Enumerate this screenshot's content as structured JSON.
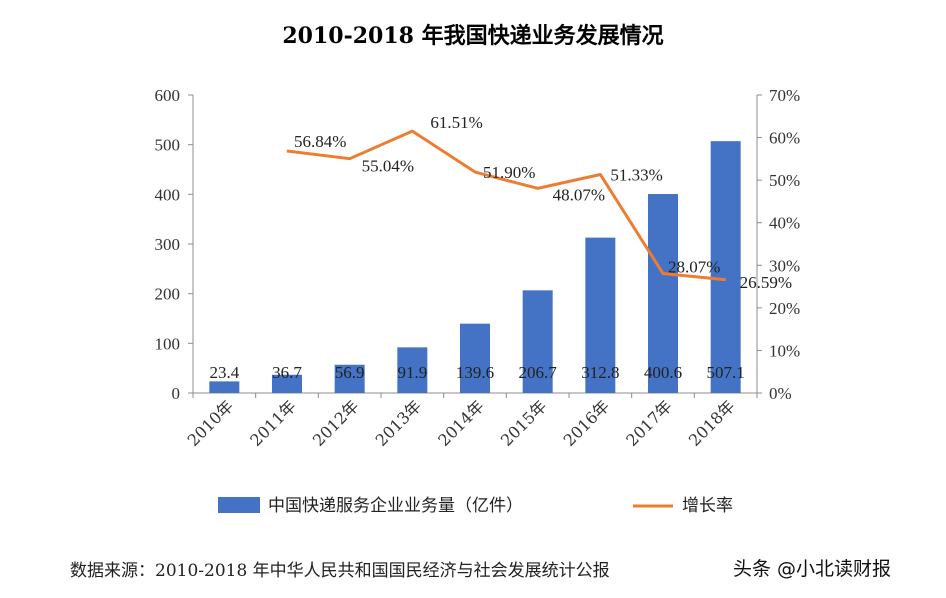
{
  "chart_data": {
    "type": "bar+line",
    "title": "2010-2018 年我国快递业务发展情况",
    "categories": [
      "2010年",
      "2011年",
      "2012年",
      "2013年",
      "2014年",
      "2015年",
      "2016年",
      "2017年",
      "2018年"
    ],
    "series": [
      {
        "name": "中国快递服务企业业务量（亿件）",
        "type": "bar",
        "axis": "left",
        "color": "#4472C4",
        "values": [
          23.4,
          36.7,
          56.9,
          91.9,
          139.6,
          206.7,
          312.8,
          400.6,
          507.1
        ],
        "labels": [
          "23.4",
          "36.7",
          "56.9",
          "91.9",
          "139.6",
          "206.7",
          "312.8",
          "400.6",
          "507.1"
        ]
      },
      {
        "name": "增长率",
        "type": "line",
        "axis": "right",
        "color": "#ED7D31",
        "values": [
          null,
          56.84,
          55.04,
          61.51,
          51.9,
          48.07,
          51.33,
          28.07,
          26.59
        ],
        "labels": [
          "",
          "56.84%",
          "55.04%",
          "61.51%",
          "51.90%",
          "48.07%",
          "51.33%",
          "28.07%",
          "26.59%"
        ]
      }
    ],
    "ylim_left": [
      0,
      600
    ],
    "yticks_left": [
      "0",
      "100",
      "200",
      "300",
      "400",
      "500",
      "600"
    ],
    "ylim_right": [
      0,
      70
    ],
    "yticks_right": [
      "0%",
      "10%",
      "20%",
      "30%",
      "40%",
      "50%",
      "60%",
      "70%"
    ],
    "grid": false,
    "legend_position": "bottom"
  },
  "source_text": "数据来源：2010-2018 年中华人民共和国国民经济与社会发展统计公报",
  "watermark_text": "头条 @小北读财报"
}
